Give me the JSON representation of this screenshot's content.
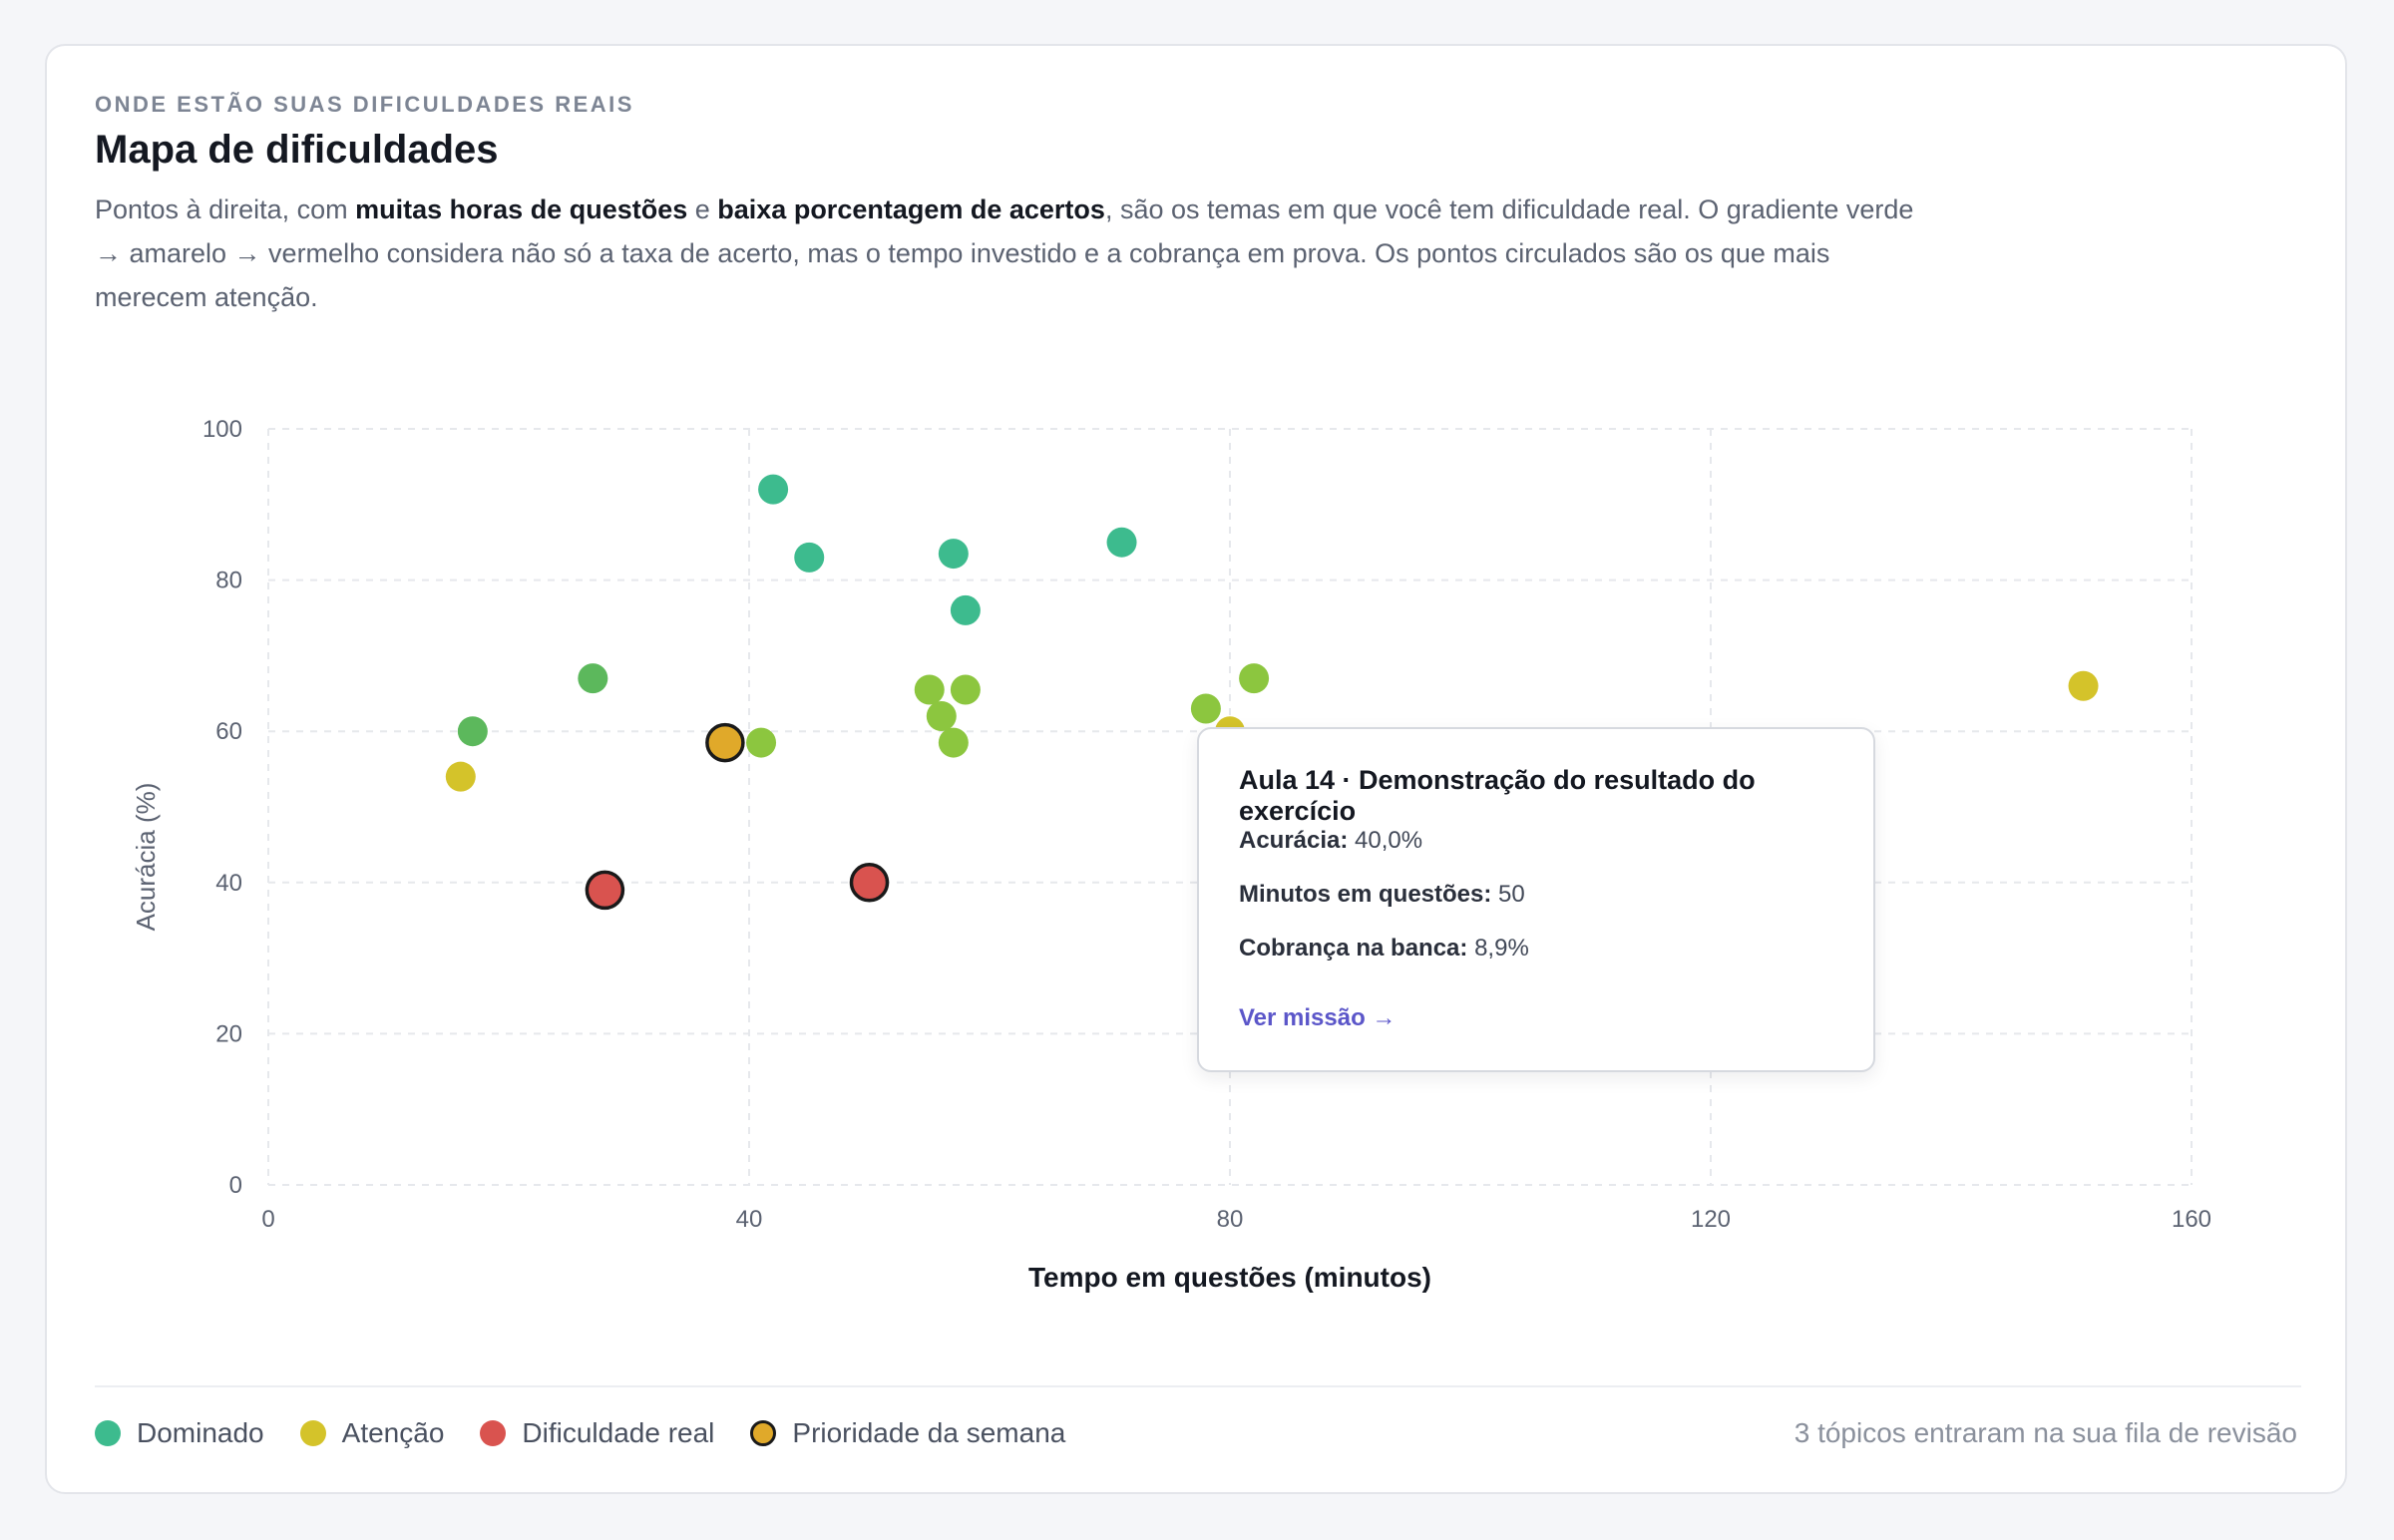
{
  "header": {
    "eyebrow": "ONDE ESTÃO SUAS DIFICULDADES REAIS",
    "title": "Mapa de dificuldades",
    "desc_1": "Pontos à direita, com ",
    "desc_bold_1": "muitas horas de questões",
    "desc_2": " e ",
    "desc_bold_2": "baixa porcentagem de acertos",
    "desc_3": ", são os temas em que você tem dificuldade real. O gradiente verde → amarelo → vermelho considera não só a taxa de acerto, mas o tempo investido e a cobrança em prova. Os pontos circulados são os que mais merecem atenção."
  },
  "colors": {
    "dominado": "#3dbb8e",
    "verde_claro": "#5cb85c",
    "lima": "#8cc63f",
    "atencao": "#d4c32a",
    "dificuldade": "#d9534f",
    "prioridade": "#e0a92a",
    "outline": "#1a1a1a"
  },
  "chart_data": {
    "type": "scatter",
    "xlabel": "Tempo em questões (minutos)",
    "ylabel": "Acurácia (%)",
    "xlim": [
      0,
      160
    ],
    "ylim": [
      0,
      100
    ],
    "xticks": [
      "0",
      "40",
      "80",
      "120",
      "160"
    ],
    "yticks": [
      "0",
      "20",
      "40",
      "60",
      "80",
      "100"
    ],
    "grid": true,
    "points": [
      {
        "x": 42,
        "y": 92,
        "color": "#3dbb8e"
      },
      {
        "x": 45,
        "y": 83,
        "color": "#3dbb8e"
      },
      {
        "x": 57,
        "y": 83.5,
        "color": "#3dbb8e"
      },
      {
        "x": 58,
        "y": 76,
        "color": "#3dbb8e"
      },
      {
        "x": 71,
        "y": 85,
        "color": "#3dbb8e"
      },
      {
        "x": 17,
        "y": 60,
        "color": "#5cb85c"
      },
      {
        "x": 27,
        "y": 67,
        "color": "#5cb85c"
      },
      {
        "x": 41,
        "y": 58.5,
        "color": "#8cc63f"
      },
      {
        "x": 55,
        "y": 65.5,
        "color": "#8cc63f"
      },
      {
        "x": 56,
        "y": 62,
        "color": "#8cc63f"
      },
      {
        "x": 57,
        "y": 58.5,
        "color": "#8cc63f"
      },
      {
        "x": 58,
        "y": 65.5,
        "color": "#8cc63f"
      },
      {
        "x": 78,
        "y": 63,
        "color": "#8cc63f"
      },
      {
        "x": 82,
        "y": 67,
        "color": "#8cc63f"
      },
      {
        "x": 16,
        "y": 54,
        "color": "#d4c32a"
      },
      {
        "x": 80,
        "y": 60,
        "color": "#d4c32a"
      },
      {
        "x": 151,
        "y": 66,
        "color": "#d4c32a"
      },
      {
        "x": 38,
        "y": 58.5,
        "color": "#e0a92a",
        "outlined": true
      },
      {
        "x": 28,
        "y": 39,
        "color": "#d9534f",
        "outlined": true
      },
      {
        "x": 50,
        "y": 40,
        "color": "#d9534f",
        "outlined": true
      }
    ]
  },
  "tooltip": {
    "title": "Aula 14 · Demonstração do resultado do exercício",
    "accuracy_label": "Acurácia:",
    "accuracy_value": " 40,0%",
    "minutes_label": "Minutos em questões:",
    "minutes_value": " 50",
    "bank_label": "Cobrança na banca:",
    "bank_value": " 8,9%",
    "link": "Ver missão →"
  },
  "legend": [
    {
      "label": "Dominado",
      "color": "#3dbb8e",
      "outlined": false
    },
    {
      "label": "Atenção",
      "color": "#d4c32a",
      "outlined": false
    },
    {
      "label": "Dificuldade real",
      "color": "#d9534f",
      "outlined": false
    },
    {
      "label": "Prioridade da semana",
      "color": "#e0a92a",
      "outlined": true
    }
  ],
  "footnote": "3 tópicos entraram na sua fila de revisão"
}
